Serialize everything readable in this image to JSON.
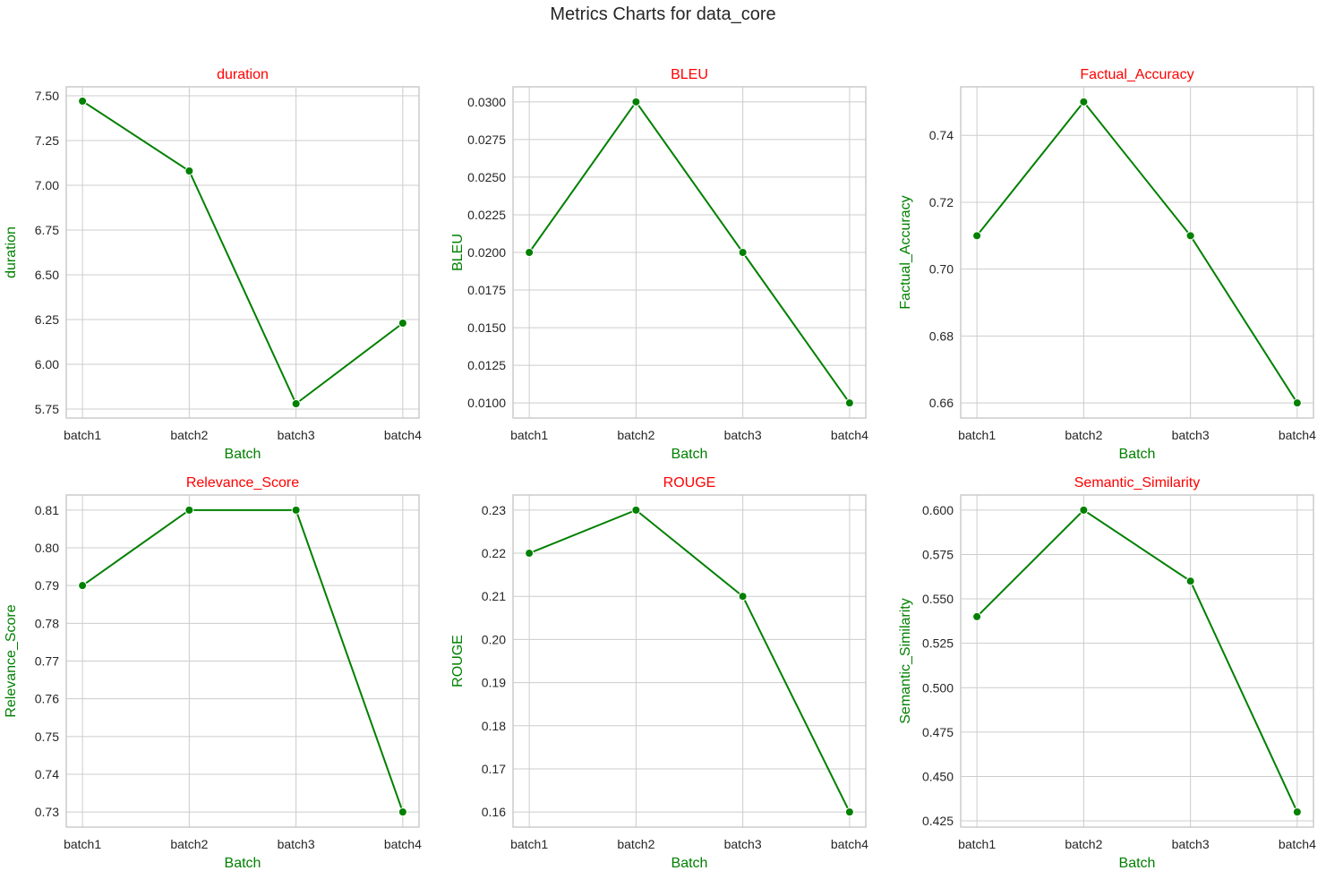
{
  "figure": {
    "title": "Metrics Charts for data_core"
  },
  "colors": {
    "line": "#008000",
    "marker": "#008000",
    "panel_title": "#ff0000",
    "axis_label": "#008000",
    "grid": "#cccccc",
    "spine": "#cccccc",
    "tick_text": "#262626"
  },
  "chart_data": [
    {
      "type": "line",
      "title": "duration",
      "xlabel": "Batch",
      "ylabel": "duration",
      "categories": [
        "batch1",
        "batch2",
        "batch3",
        "batch4"
      ],
      "values": [
        7.47,
        7.08,
        5.78,
        6.23
      ],
      "ylim": [
        5.7,
        7.55
      ],
      "yticks": [
        5.75,
        6.0,
        6.25,
        6.5,
        6.75,
        7.0,
        7.25,
        7.5
      ],
      "ytick_labels": [
        "5.75",
        "6.00",
        "6.25",
        "6.50",
        "6.75",
        "7.00",
        "7.25",
        "7.50"
      ],
      "grid": true,
      "marker": "circle"
    },
    {
      "type": "line",
      "title": "BLEU",
      "xlabel": "Batch",
      "ylabel": "BLEU",
      "categories": [
        "batch1",
        "batch2",
        "batch3",
        "batch4"
      ],
      "values": [
        0.02,
        0.03,
        0.02,
        0.01
      ],
      "ylim": [
        0.009,
        0.031
      ],
      "yticks": [
        0.01,
        0.0125,
        0.015,
        0.0175,
        0.02,
        0.0225,
        0.025,
        0.0275,
        0.03
      ],
      "ytick_labels": [
        "0.0100",
        "0.0125",
        "0.0150",
        "0.0175",
        "0.0200",
        "0.0225",
        "0.0250",
        "0.0275",
        "0.0300"
      ],
      "grid": true,
      "marker": "circle"
    },
    {
      "type": "line",
      "title": "Factual_Accuracy",
      "xlabel": "Batch",
      "ylabel": "Factual_Accuracy",
      "categories": [
        "batch1",
        "batch2",
        "batch3",
        "batch4"
      ],
      "values": [
        0.71,
        0.75,
        0.71,
        0.66
      ],
      "ylim": [
        0.6555,
        0.7545
      ],
      "yticks": [
        0.66,
        0.68,
        0.7,
        0.72,
        0.74
      ],
      "ytick_labels": [
        "0.66",
        "0.68",
        "0.70",
        "0.72",
        "0.74"
      ],
      "grid": true,
      "marker": "circle"
    },
    {
      "type": "line",
      "title": "Relevance_Score",
      "xlabel": "Batch",
      "ylabel": "Relevance_Score",
      "categories": [
        "batch1",
        "batch2",
        "batch3",
        "batch4"
      ],
      "values": [
        0.79,
        0.81,
        0.81,
        0.73
      ],
      "ylim": [
        0.726,
        0.814
      ],
      "yticks": [
        0.73,
        0.74,
        0.75,
        0.76,
        0.77,
        0.78,
        0.79,
        0.8,
        0.81
      ],
      "ytick_labels": [
        "0.73",
        "0.74",
        "0.75",
        "0.76",
        "0.77",
        "0.78",
        "0.79",
        "0.80",
        "0.81"
      ],
      "grid": true,
      "marker": "circle"
    },
    {
      "type": "line",
      "title": "ROUGE",
      "xlabel": "Batch",
      "ylabel": "ROUGE",
      "categories": [
        "batch1",
        "batch2",
        "batch3",
        "batch4"
      ],
      "values": [
        0.22,
        0.23,
        0.21,
        0.16
      ],
      "ylim": [
        0.1565,
        0.2335
      ],
      "yticks": [
        0.16,
        0.17,
        0.18,
        0.19,
        0.2,
        0.21,
        0.22,
        0.23
      ],
      "ytick_labels": [
        "0.16",
        "0.17",
        "0.18",
        "0.19",
        "0.20",
        "0.21",
        "0.22",
        "0.23"
      ],
      "grid": true,
      "marker": "circle"
    },
    {
      "type": "line",
      "title": "Semantic_Similarity",
      "xlabel": "Batch",
      "ylabel": "Semantic_Similarity",
      "categories": [
        "batch1",
        "batch2",
        "batch3",
        "batch4"
      ],
      "values": [
        0.54,
        0.6,
        0.56,
        0.43
      ],
      "ylim": [
        0.4215,
        0.6085
      ],
      "yticks": [
        0.425,
        0.45,
        0.475,
        0.5,
        0.525,
        0.55,
        0.575,
        0.6
      ],
      "ytick_labels": [
        "0.425",
        "0.450",
        "0.475",
        "0.500",
        "0.525",
        "0.550",
        "0.575",
        "0.600"
      ],
      "grid": true,
      "marker": "circle"
    }
  ]
}
